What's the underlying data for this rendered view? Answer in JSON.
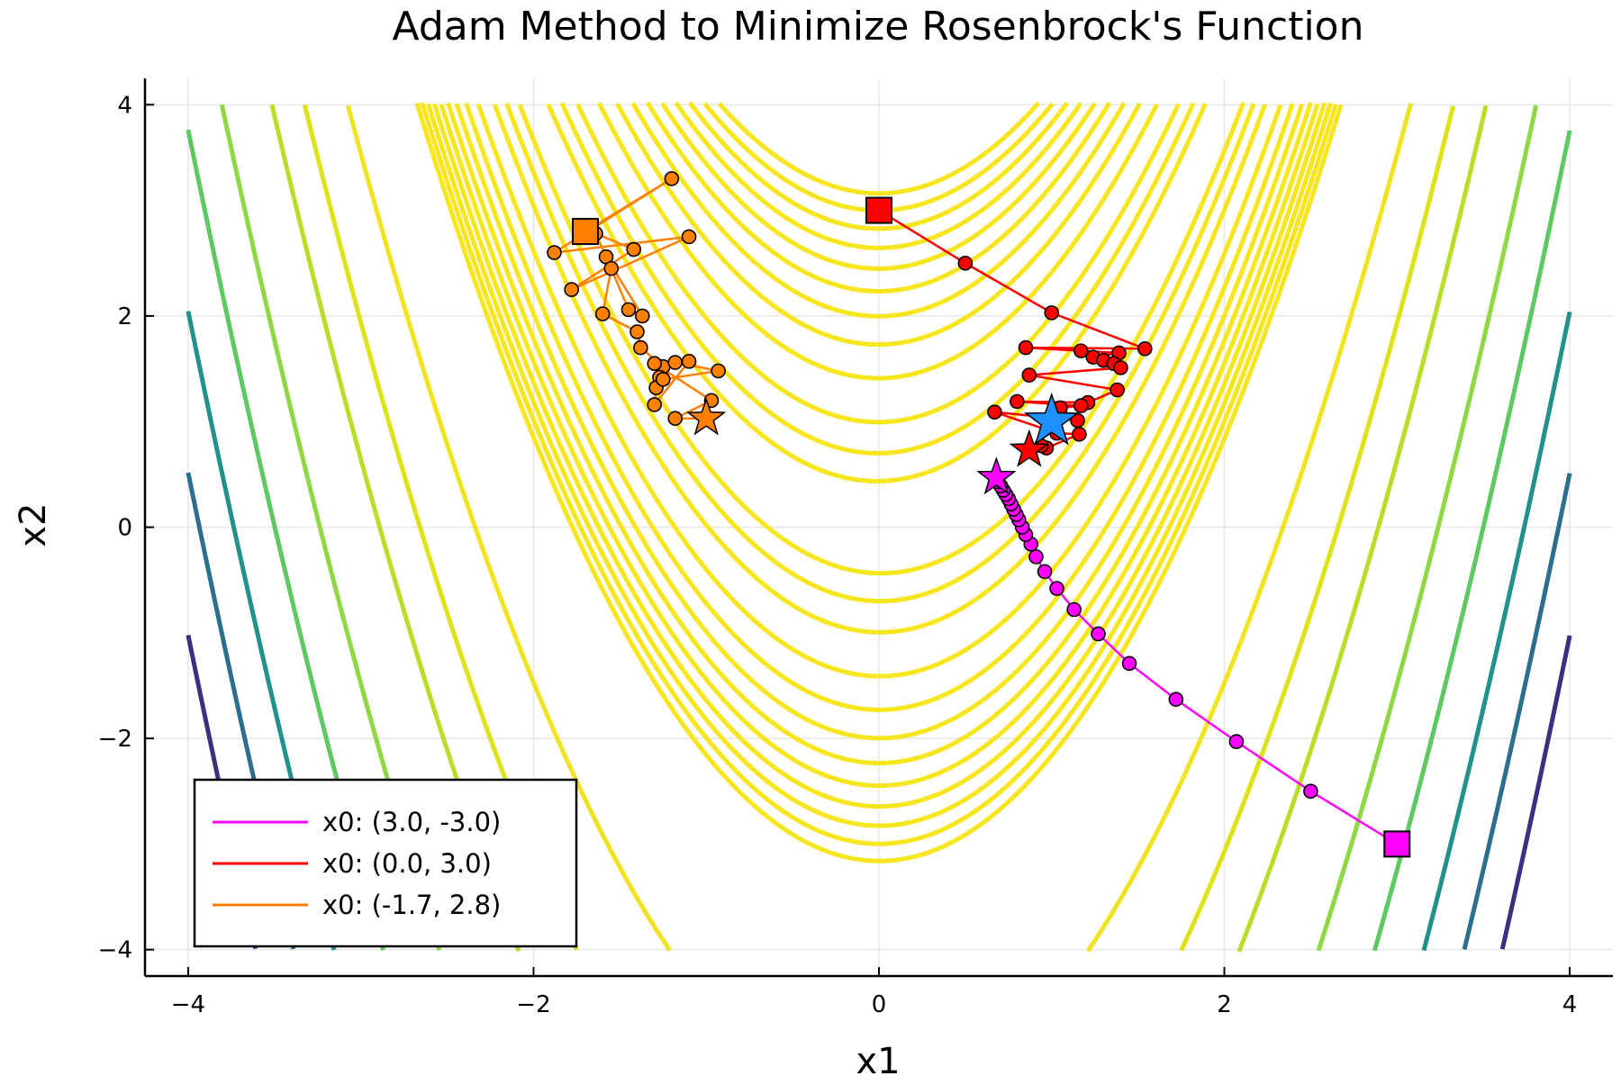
{
  "chart_data": {
    "type": "line",
    "title": "Adam Method to Minimize Rosenbrock's Function",
    "xlabel": "x1",
    "ylabel": "x2",
    "xlim": [
      -4.25,
      4.25
    ],
    "ylim": [
      -4.25,
      4.25
    ],
    "xticks": [
      -4,
      -2,
      0,
      2,
      4
    ],
    "yticks": [
      -4,
      -2,
      0,
      2,
      4
    ],
    "tick_labels": [
      "−4",
      "−2",
      "0",
      "2",
      "4"
    ],
    "grid": true,
    "legend_position": "bottom-left",
    "function": "Rosenbrock (1 - x1)^2 + 100 (x2 - x1^2)^2",
    "colors": {
      "contour_low": "#f6e51f",
      "contour_mid": "#b8de29",
      "contour_green": "#5ec962",
      "contour_teal": "#21918c",
      "contour_blue": "#2c6e8e",
      "contour_purple": "#3b2f7f",
      "minimum_star": "#1e90ff"
    },
    "contours": [
      {
        "level": 1000,
        "color": "#f6e51f"
      },
      {
        "level": 900,
        "color": "#f6e51f"
      },
      {
        "level": 800,
        "color": "#f6e51f"
      },
      {
        "level": 700,
        "color": "#f6e51f"
      },
      {
        "level": 600,
        "color": "#f6e51f"
      },
      {
        "level": 500,
        "color": "#f6e51f"
      },
      {
        "level": 400,
        "color": "#f6e51f"
      },
      {
        "level": 300,
        "color": "#f6e51f"
      },
      {
        "level": 200,
        "color": "#f6e51f"
      },
      {
        "level": 100,
        "color": "#f6e51f"
      },
      {
        "level": 50,
        "color": "#f6e51f"
      },
      {
        "level": 20,
        "color": "#f6e51f"
      },
      {
        "level": 3000,
        "color": "#f0e321"
      },
      {
        "level": 5000,
        "color": "#dde318"
      },
      {
        "level": 7000,
        "color": "#b8de29"
      },
      {
        "level": 11000,
        "color": "#8fd744"
      },
      {
        "level": 15000,
        "color": "#5ec962"
      },
      {
        "level": 19500,
        "color": "#21918c"
      },
      {
        "level": 24000,
        "color": "#2c6e8e"
      },
      {
        "level": 29000,
        "color": "#3b2f7f"
      }
    ],
    "minimum": {
      "x": 1.0,
      "y": 1.0
    },
    "series": [
      {
        "name": "x0: (3.0, -3.0)",
        "color": "#ff00ff",
        "start": [
          3.0,
          -3.0
        ],
        "end": [
          0.68,
          0.47
        ],
        "x": [
          3.0,
          2.5,
          2.07,
          1.72,
          1.45,
          1.27,
          1.13,
          1.03,
          0.96,
          0.91,
          0.88,
          0.85,
          0.83,
          0.81,
          0.795,
          0.78,
          0.765,
          0.75,
          0.735,
          0.72,
          0.705,
          0.69,
          0.68
        ],
        "y": [
          -3.0,
          -2.5,
          -2.03,
          -1.63,
          -1.29,
          -1.01,
          -0.78,
          -0.58,
          -0.42,
          -0.28,
          -0.16,
          -0.07,
          0.0,
          0.07,
          0.12,
          0.17,
          0.22,
          0.27,
          0.31,
          0.35,
          0.39,
          0.43,
          0.47
        ]
      },
      {
        "name": "x0: (0.0, 3.0)",
        "color": "#ff0000",
        "start": [
          0.0,
          3.0
        ],
        "end": [
          0.87,
          0.73
        ],
        "x": [
          0.0,
          0.5,
          1.0,
          1.54,
          0.85,
          1.17,
          1.39,
          1.24,
          1.3,
          1.36,
          1.4,
          0.87,
          1.38,
          1.21,
          0.8,
          1.17,
          1.05,
          1.15,
          0.67,
          1.03,
          1.16,
          0.97,
          0.94,
          0.87
        ],
        "y": [
          3.0,
          2.5,
          2.03,
          1.69,
          1.7,
          1.67,
          1.65,
          1.61,
          1.58,
          1.55,
          1.51,
          1.44,
          1.3,
          1.18,
          1.19,
          1.15,
          1.13,
          1.01,
          1.09,
          0.89,
          0.88,
          0.75,
          0.77,
          0.73
        ]
      },
      {
        "name": "x0: (-1.7, 2.8)",
        "color": "#ff8000",
        "start": [
          -1.7,
          2.8
        ],
        "end": [
          -1.0,
          1.03
        ],
        "x": [
          -1.7,
          -1.2,
          -1.88,
          -1.1,
          -1.78,
          -1.42,
          -1.64,
          -1.58,
          -1.37,
          -1.45,
          -1.55,
          -1.6,
          -1.4,
          -1.38,
          -1.25,
          -1.27,
          -1.29,
          -1.3,
          -1.1,
          -1.18,
          -0.93,
          -1.25,
          -1.3,
          -0.97,
          -1.18,
          -1.0
        ],
        "y": [
          2.8,
          3.3,
          2.6,
          2.75,
          2.25,
          2.63,
          2.78,
          2.56,
          2.0,
          2.06,
          2.45,
          2.02,
          1.85,
          1.7,
          1.52,
          1.42,
          1.32,
          1.16,
          1.57,
          1.56,
          1.48,
          1.4,
          1.55,
          1.2,
          1.03,
          1.03
        ]
      }
    ]
  }
}
